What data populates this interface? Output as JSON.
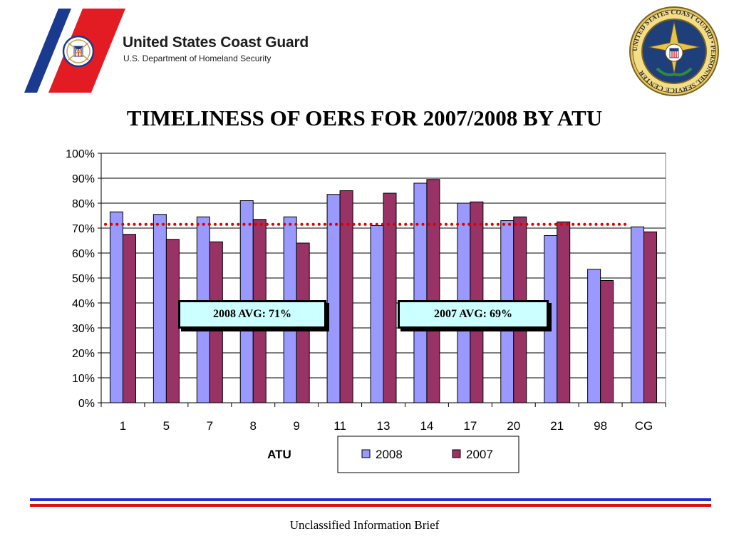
{
  "header": {
    "org_name": "United States Coast Guard",
    "org_dept": "U.S. Department of Homeland Security",
    "logo_icon": "coast-guard-emblem-icon",
    "seal_icon": "personnel-service-center-seal-icon",
    "seal_text": "UNITED STATES COAST GUARD • PERSONNEL SERVICE CENTER",
    "stripe_colors": {
      "red": "#e31b23",
      "blue": "#1a3a8f"
    }
  },
  "slide_title": "TIMELINESS OF OERS FOR 2007/2008 BY ATU",
  "annotations": {
    "avg_2008": "2008 AVG: 71%",
    "avg_2007": "2007 AVG: 69%"
  },
  "footer": {
    "text": "Unclassified Information Brief",
    "line_colors": {
      "blue": "#2233cc",
      "red": "#dd1111"
    }
  },
  "chart_data": {
    "type": "bar",
    "title": "",
    "xlabel": "ATU",
    "ylabel": "",
    "categories": [
      "1",
      "5",
      "7",
      "8",
      "9",
      "11",
      "13",
      "14",
      "17",
      "20",
      "21",
      "98",
      "CG"
    ],
    "series": [
      {
        "name": "2008",
        "color": "#9999ff",
        "values": [
          76.5,
          75.5,
          74.5,
          81,
          74.5,
          83.5,
          71,
          88,
          80,
          73,
          67,
          53.5,
          70.5
        ]
      },
      {
        "name": "2007",
        "color": "#993366",
        "values": [
          67.5,
          65.5,
          64.5,
          73.5,
          64,
          85,
          84,
          89.5,
          80.5,
          74.5,
          72.5,
          49,
          68.5
        ]
      }
    ],
    "reference_line": {
      "value": 71.5,
      "style": "dotted",
      "color": "#dd0000"
    },
    "ylim": [
      0,
      100
    ],
    "yticks": [
      "0%",
      "10%",
      "20%",
      "30%",
      "40%",
      "50%",
      "60%",
      "70%",
      "80%",
      "90%",
      "100%"
    ],
    "grid": true,
    "legend": {
      "placement": "bottom-center",
      "entries": [
        "2008",
        "2007"
      ]
    }
  }
}
